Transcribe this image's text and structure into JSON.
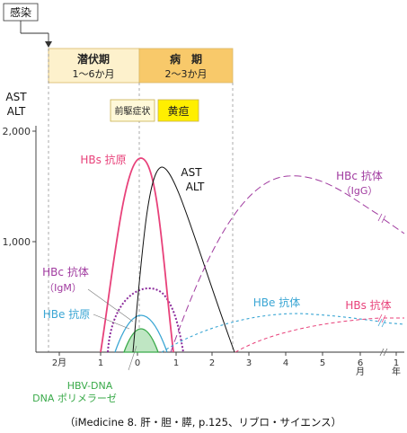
{
  "chart_data": {
    "type": "line",
    "infection_label": "感染",
    "ylabel_lines": [
      "AST",
      "ALT"
    ],
    "y_ticks": [
      2000,
      1000
    ],
    "y_tick_labels": [
      "2,000",
      "1,000"
    ],
    "ylim": [
      0,
      2000
    ],
    "x_tick_labels": [
      "2月",
      "1",
      "0",
      "1",
      "2",
      "3",
      "4",
      "5",
      "6",
      "1"
    ],
    "x_unit_labels": [
      "月",
      "年"
    ],
    "periods": [
      {
        "name": "潜伏期",
        "duration": "1～6か月",
        "fill": "#fdf1cc"
      },
      {
        "name": "病　期",
        "duration": "2～3か月",
        "fill": "#f8c96a"
      }
    ],
    "badges": [
      {
        "label": "前駆症状",
        "fill": "#fff9d9",
        "border": "#c9b04d"
      },
      {
        "label": "黄疸",
        "fill": "#ffef00",
        "border": "#c9b04d"
      }
    ],
    "series": [
      {
        "name": "HBs 抗原",
        "color": "#e8417a"
      },
      {
        "name_lines": [
          "AST",
          "ALT"
        ],
        "color": "#111111"
      },
      {
        "name_lines": [
          "HBc 抗体",
          "（IgG）"
        ],
        "color": "#a03a9f"
      },
      {
        "name_lines": [
          "HBc 抗体",
          "（IgM）"
        ],
        "color": "#a03a9f"
      },
      {
        "name": "HBe 抗原",
        "color": "#3aa6d4"
      },
      {
        "name": "HBe 抗体",
        "color": "#3aa6d4"
      },
      {
        "name": "HBs 抗体",
        "color": "#e8417a"
      },
      {
        "name_lines": [
          "HBV-DNA",
          "DNA ポリメラーゼ"
        ],
        "color": "#3aaa4a"
      }
    ],
    "caption": "（iMedicine 8.  肝・胆・膵, p.125、リブロ・サイエンス）"
  }
}
